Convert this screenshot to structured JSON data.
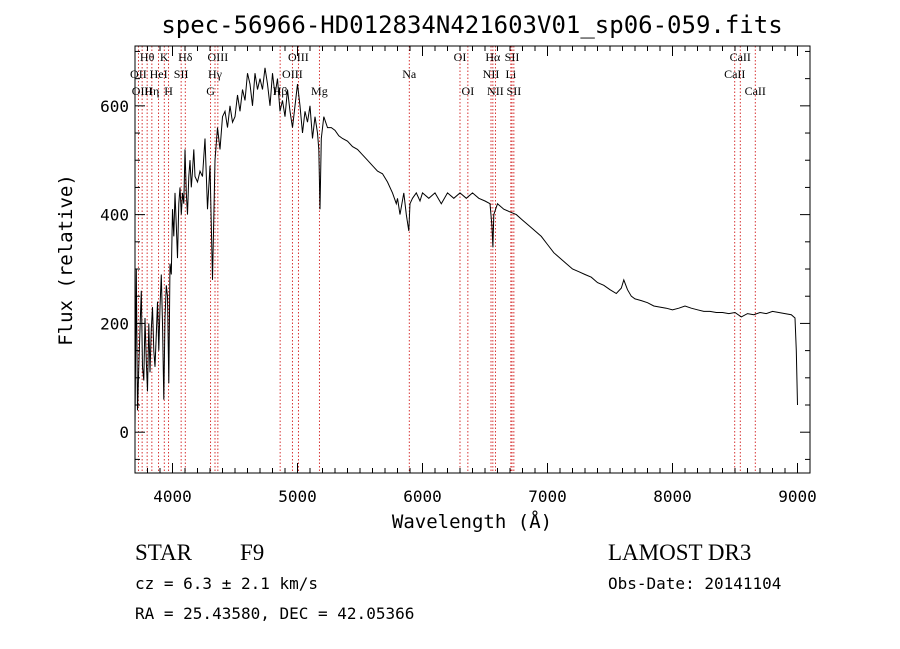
{
  "chart_data": {
    "type": "line",
    "title": "spec-56966-HD012834N421603V01_sp06-059.fits",
    "xlabel": "Wavelength (Å)",
    "ylabel": "Flux (relative)",
    "xlim": [
      3700,
      9100
    ],
    "ylim": [
      -75,
      710
    ],
    "xticks": [
      4000,
      5000,
      6000,
      7000,
      8000,
      9000
    ],
    "yticks": [
      0,
      200,
      400,
      600
    ],
    "grid": false,
    "series": [
      {
        "points": [
          [
            3700,
            10
          ],
          [
            3710,
            300
          ],
          [
            3720,
            40
          ],
          [
            3730,
            120
          ],
          [
            3740,
            190
          ],
          [
            3750,
            260
          ],
          [
            3760,
            120
          ],
          [
            3770,
            95
          ],
          [
            3780,
            210
          ],
          [
            3790,
            130
          ],
          [
            3800,
            75
          ],
          [
            3810,
            200
          ],
          [
            3820,
            110
          ],
          [
            3830,
            190
          ],
          [
            3840,
            230
          ],
          [
            3850,
            150
          ],
          [
            3860,
            120
          ],
          [
            3870,
            180
          ],
          [
            3880,
            240
          ],
          [
            3890,
            150
          ],
          [
            3900,
            230
          ],
          [
            3910,
            290
          ],
          [
            3920,
            200
          ],
          [
            3930,
            60
          ],
          [
            3940,
            210
          ],
          [
            3950,
            270
          ],
          [
            3960,
            250
          ],
          [
            3970,
            90
          ],
          [
            3980,
            310
          ],
          [
            3990,
            290
          ],
          [
            4000,
            410
          ],
          [
            4010,
            360
          ],
          [
            4020,
            440
          ],
          [
            4030,
            380
          ],
          [
            4040,
            320
          ],
          [
            4050,
            420
          ],
          [
            4060,
            450
          ],
          [
            4070,
            400
          ],
          [
            4080,
            440
          ],
          [
            4090,
            420
          ],
          [
            4100,
            520
          ],
          [
            4110,
            440
          ],
          [
            4120,
            400
          ],
          [
            4130,
            470
          ],
          [
            4140,
            500
          ],
          [
            4150,
            450
          ],
          [
            4160,
            480
          ],
          [
            4170,
            520
          ],
          [
            4180,
            470
          ],
          [
            4200,
            460
          ],
          [
            4220,
            480
          ],
          [
            4240,
            470
          ],
          [
            4260,
            540
          ],
          [
            4280,
            410
          ],
          [
            4300,
            490
          ],
          [
            4320,
            280
          ],
          [
            4340,
            500
          ],
          [
            4360,
            560
          ],
          [
            4380,
            520
          ],
          [
            4400,
            580
          ],
          [
            4420,
            590
          ],
          [
            4440,
            560
          ],
          [
            4460,
            600
          ],
          [
            4480,
            570
          ],
          [
            4500,
            580
          ],
          [
            4520,
            620
          ],
          [
            4540,
            590
          ],
          [
            4560,
            630
          ],
          [
            4580,
            610
          ],
          [
            4600,
            660
          ],
          [
            4620,
            640
          ],
          [
            4640,
            600
          ],
          [
            4660,
            660
          ],
          [
            4680,
            630
          ],
          [
            4700,
            650
          ],
          [
            4720,
            630
          ],
          [
            4740,
            670
          ],
          [
            4760,
            640
          ],
          [
            4780,
            600
          ],
          [
            4800,
            660
          ],
          [
            4820,
            620
          ],
          [
            4840,
            650
          ],
          [
            4860,
            590
          ],
          [
            4880,
            610
          ],
          [
            4900,
            580
          ],
          [
            4920,
            630
          ],
          [
            4940,
            590
          ],
          [
            4960,
            560
          ],
          [
            4980,
            600
          ],
          [
            5000,
            640
          ],
          [
            5020,
            600
          ],
          [
            5040,
            550
          ],
          [
            5060,
            590
          ],
          [
            5080,
            570
          ],
          [
            5100,
            600
          ],
          [
            5120,
            540
          ],
          [
            5140,
            580
          ],
          [
            5160,
            550
          ],
          [
            5170,
            520
          ],
          [
            5180,
            410
          ],
          [
            5190,
            540
          ],
          [
            5210,
            580
          ],
          [
            5240,
            560
          ],
          [
            5270,
            560
          ],
          [
            5300,
            555
          ],
          [
            5330,
            545
          ],
          [
            5360,
            540
          ],
          [
            5400,
            535
          ],
          [
            5440,
            525
          ],
          [
            5480,
            520
          ],
          [
            5520,
            510
          ],
          [
            5560,
            500
          ],
          [
            5600,
            490
          ],
          [
            5640,
            480
          ],
          [
            5680,
            475
          ],
          [
            5720,
            460
          ],
          [
            5760,
            440
          ],
          [
            5790,
            420
          ],
          [
            5800,
            430
          ],
          [
            5820,
            400
          ],
          [
            5850,
            440
          ],
          [
            5870,
            400
          ],
          [
            5890,
            370
          ],
          [
            5900,
            420
          ],
          [
            5920,
            430
          ],
          [
            5950,
            440
          ],
          [
            5980,
            425
          ],
          [
            6000,
            440
          ],
          [
            6050,
            430
          ],
          [
            6100,
            440
          ],
          [
            6150,
            420
          ],
          [
            6200,
            440
          ],
          [
            6250,
            430
          ],
          [
            6300,
            440
          ],
          [
            6350,
            430
          ],
          [
            6400,
            440
          ],
          [
            6450,
            430
          ],
          [
            6500,
            425
          ],
          [
            6540,
            420
          ],
          [
            6555,
            380
          ],
          [
            6563,
            340
          ],
          [
            6570,
            400
          ],
          [
            6600,
            420
          ],
          [
            6650,
            410
          ],
          [
            6700,
            405
          ],
          [
            6750,
            400
          ],
          [
            6800,
            390
          ],
          [
            6850,
            380
          ],
          [
            6900,
            370
          ],
          [
            6950,
            360
          ],
          [
            7000,
            345
          ],
          [
            7050,
            330
          ],
          [
            7100,
            320
          ],
          [
            7150,
            310
          ],
          [
            7200,
            300
          ],
          [
            7250,
            295
          ],
          [
            7300,
            290
          ],
          [
            7350,
            285
          ],
          [
            7400,
            275
          ],
          [
            7450,
            270
          ],
          [
            7500,
            262
          ],
          [
            7550,
            255
          ],
          [
            7590,
            265
          ],
          [
            7610,
            280
          ],
          [
            7640,
            262
          ],
          [
            7670,
            250
          ],
          [
            7700,
            245
          ],
          [
            7750,
            242
          ],
          [
            7800,
            238
          ],
          [
            7850,
            232
          ],
          [
            7900,
            230
          ],
          [
            7950,
            228
          ],
          [
            8000,
            225
          ],
          [
            8050,
            228
          ],
          [
            8100,
            232
          ],
          [
            8150,
            228
          ],
          [
            8200,
            225
          ],
          [
            8250,
            222
          ],
          [
            8300,
            222
          ],
          [
            8350,
            220
          ],
          [
            8400,
            220
          ],
          [
            8450,
            218
          ],
          [
            8500,
            220
          ],
          [
            8550,
            212
          ],
          [
            8600,
            218
          ],
          [
            8650,
            216
          ],
          [
            8700,
            220
          ],
          [
            8750,
            218
          ],
          [
            8800,
            222
          ],
          [
            8850,
            220
          ],
          [
            8900,
            218
          ],
          [
            8950,
            216
          ],
          [
            8980,
            210
          ],
          [
            8990,
            150
          ],
          [
            9000,
            50
          ]
        ]
      }
    ],
    "emission_lines": [
      {
        "label": "Hθ",
        "wavelength": 3797,
        "row": 0
      },
      {
        "label": "OII",
        "wavelength": 3727,
        "row": 1
      },
      {
        "label": "OIII",
        "wavelength": 3757,
        "row": 2
      },
      {
        "label": "K",
        "wavelength": 3934,
        "row": 0
      },
      {
        "label": "HeI",
        "wavelength": 3889,
        "row": 1
      },
      {
        "label": "Hη",
        "wavelength": 3835,
        "row": 2
      },
      {
        "label": "Hδ",
        "wavelength": 4102,
        "row": 0
      },
      {
        "label": "SII",
        "wavelength": 4069,
        "row": 1
      },
      {
        "label": "H",
        "wavelength": 3969,
        "row": 2
      },
      {
        "label": "OIII",
        "wavelength": 4363,
        "row": 0
      },
      {
        "label": "Hγ",
        "wavelength": 4340,
        "row": 1
      },
      {
        "label": "G",
        "wavelength": 4305,
        "row": 2
      },
      {
        "label": "OIII",
        "wavelength": 5007,
        "row": 0
      },
      {
        "label": "OIII",
        "wavelength": 4959,
        "row": 1
      },
      {
        "label": "Hβ",
        "wavelength": 4861,
        "row": 2
      },
      {
        "label": "Mg",
        "wavelength": 5175,
        "row": 2
      },
      {
        "label": "Na",
        "wavelength": 5894,
        "row": 1
      },
      {
        "label": "OI",
        "wavelength": 6300,
        "row": 0
      },
      {
        "label": "OI",
        "wavelength": 6363,
        "row": 2
      },
      {
        "label": "Hα",
        "wavelength": 6563,
        "row": 0
      },
      {
        "label": "SII",
        "wavelength": 6716,
        "row": 0
      },
      {
        "label": "NII",
        "wavelength": 6548,
        "row": 1
      },
      {
        "label": "Li",
        "wavelength": 6707,
        "row": 1
      },
      {
        "label": "NII",
        "wavelength": 6583,
        "row": 2
      },
      {
        "label": "SII",
        "wavelength": 6731,
        "row": 2
      },
      {
        "label": "CaII",
        "wavelength": 8542,
        "row": 0
      },
      {
        "label": "CaII",
        "wavelength": 8498,
        "row": 1
      },
      {
        "label": "CaII",
        "wavelength": 8662,
        "row": 2
      }
    ]
  },
  "info": {
    "object_class": "STAR",
    "subclass": "F9",
    "survey": "LAMOST DR3",
    "redshift": "cz = 6.3 ± 2.1 km/s",
    "obs_date": "Obs-Date: 20141104",
    "coords": "RA =  25.43580, DEC =  42.05366"
  },
  "style": {
    "line_color": "#000000",
    "marker_color": "#cc0000",
    "background": "#ffffff"
  }
}
